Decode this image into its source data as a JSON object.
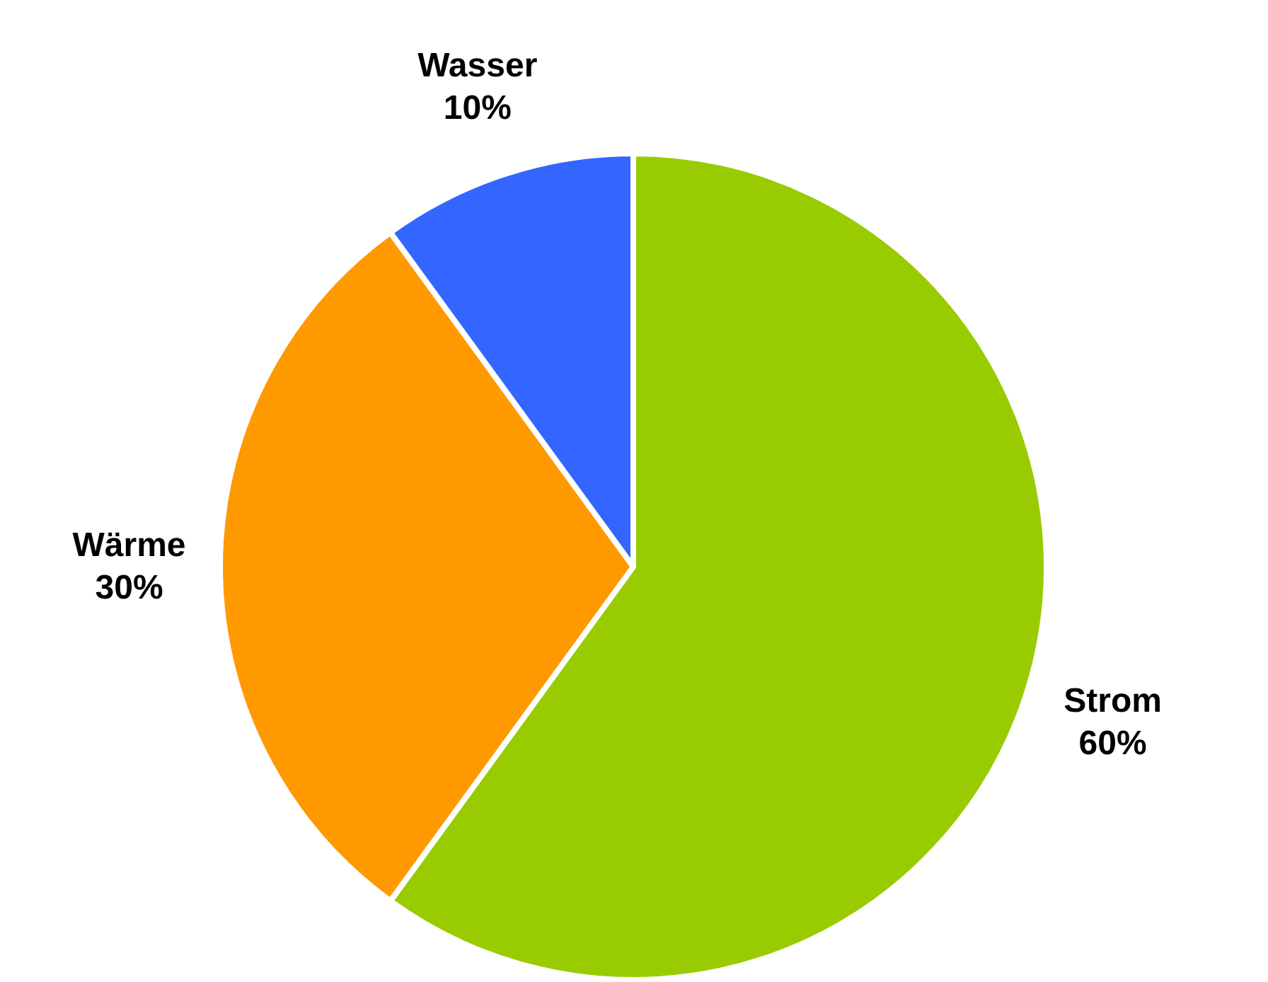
{
  "chart_data": {
    "type": "pie",
    "categories": [
      "Strom",
      "Wärme",
      "Wasser"
    ],
    "values": [
      60,
      30,
      10
    ],
    "colors": [
      "#99cc00",
      "#ff9900",
      "#3366ff"
    ],
    "value_labels": [
      "60%",
      "30%",
      "10%"
    ]
  }
}
